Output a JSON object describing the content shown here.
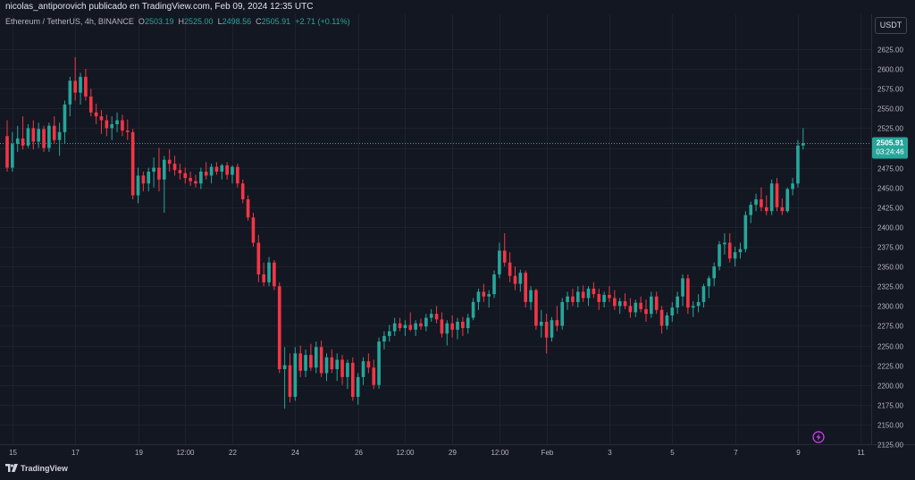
{
  "header": {
    "attribution": "nicolas_antiporovich publicado en TradingView.com, Feb 09, 2024 12:35 UTC"
  },
  "legend": {
    "symbol": "Ethereum / TetherUS, 4h, BINANCE",
    "o_label": "O",
    "o_value": "2503.19",
    "h_label": "H",
    "h_value": "2525.00",
    "l_label": "L",
    "l_value": "2498.56",
    "c_label": "C",
    "c_value": "2505.91",
    "change": "+2.71 (+0.11%)"
  },
  "currency_button": "USDT",
  "price_tag": {
    "price": "2505.91",
    "countdown": "03:24:46"
  },
  "footer": {
    "brand": "TradingView"
  },
  "colors": {
    "up": "#26a69a",
    "down": "#f23645",
    "background": "#131722",
    "grid": "#1e222d"
  },
  "lightning_icon": "lightning-icon",
  "chart_data": {
    "type": "candlestick",
    "timeframe": "4h",
    "ylim": [
      2125,
      2650
    ],
    "y_ticks": [
      2125,
      2150,
      2175,
      2200,
      2225,
      2250,
      2275,
      2300,
      2325,
      2350,
      2375,
      2400,
      2425,
      2450,
      2475,
      2500,
      2525,
      2550,
      2575,
      2600,
      2625
    ],
    "x_ticks": [
      {
        "label": "15",
        "i": 1
      },
      {
        "label": "17",
        "i": 13
      },
      {
        "label": "19",
        "i": 25
      },
      {
        "label": "12:00",
        "i": 34
      },
      {
        "label": "22",
        "i": 43
      },
      {
        "label": "24",
        "i": 55
      },
      {
        "label": "26",
        "i": 67
      },
      {
        "label": "12:00",
        "i": 76
      },
      {
        "label": "29",
        "i": 85
      },
      {
        "label": "12:00",
        "i": 94
      },
      {
        "label": "Feb",
        "i": 103
      },
      {
        "label": "3",
        "i": 115
      },
      {
        "label": "5",
        "i": 127
      },
      {
        "label": "7",
        "i": 139
      },
      {
        "label": "9",
        "i": 151
      },
      {
        "label": "11",
        "i": 163
      }
    ],
    "n_slots": 165,
    "last_price": 2505.91,
    "candles": [
      [
        2515,
        2535,
        2470,
        2475
      ],
      [
        2475,
        2520,
        2470,
        2505
      ],
      [
        2505,
        2528,
        2495,
        2512
      ],
      [
        2512,
        2540,
        2498,
        2503
      ],
      [
        2503,
        2530,
        2500,
        2525
      ],
      [
        2525,
        2535,
        2498,
        2508
      ],
      [
        2508,
        2532,
        2500,
        2524
      ],
      [
        2524,
        2528,
        2495,
        2500
      ],
      [
        2500,
        2532,
        2495,
        2528
      ],
      [
        2528,
        2540,
        2505,
        2510
      ],
      [
        2510,
        2532,
        2490,
        2520
      ],
      [
        2520,
        2560,
        2505,
        2555
      ],
      [
        2555,
        2590,
        2540,
        2585
      ],
      [
        2585,
        2615,
        2560,
        2570
      ],
      [
        2570,
        2595,
        2555,
        2590
      ],
      [
        2590,
        2600,
        2560,
        2565
      ],
      [
        2565,
        2575,
        2540,
        2545
      ],
      [
        2545,
        2556,
        2530,
        2540
      ],
      [
        2540,
        2548,
        2518,
        2535
      ],
      [
        2535,
        2542,
        2515,
        2525
      ],
      [
        2525,
        2540,
        2510,
        2530
      ],
      [
        2530,
        2545,
        2520,
        2535
      ],
      [
        2535,
        2542,
        2515,
        2522
      ],
      [
        2522,
        2536,
        2510,
        2520
      ],
      [
        2520,
        2524,
        2435,
        2440
      ],
      [
        2440,
        2475,
        2430,
        2465
      ],
      [
        2465,
        2470,
        2445,
        2455
      ],
      [
        2455,
        2475,
        2445,
        2470
      ],
      [
        2470,
        2488,
        2450,
        2475
      ],
      [
        2475,
        2500,
        2445,
        2460
      ],
      [
        2460,
        2490,
        2418,
        2485
      ],
      [
        2485,
        2498,
        2470,
        2480
      ],
      [
        2480,
        2490,
        2465,
        2472
      ],
      [
        2472,
        2480,
        2460,
        2468
      ],
      [
        2468,
        2475,
        2455,
        2462
      ],
      [
        2462,
        2470,
        2452,
        2458
      ],
      [
        2458,
        2466,
        2450,
        2455
      ],
      [
        2455,
        2475,
        2448,
        2470
      ],
      [
        2470,
        2482,
        2460,
        2465
      ],
      [
        2465,
        2480,
        2455,
        2476
      ],
      [
        2476,
        2482,
        2466,
        2470
      ],
      [
        2470,
        2480,
        2460,
        2478
      ],
      [
        2478,
        2482,
        2460,
        2466
      ],
      [
        2466,
        2478,
        2455,
        2476
      ],
      [
        2476,
        2480,
        2450,
        2455
      ],
      [
        2455,
        2460,
        2430,
        2435
      ],
      [
        2435,
        2440,
        2408,
        2412
      ],
      [
        2412,
        2418,
        2375,
        2380
      ],
      [
        2380,
        2390,
        2330,
        2340
      ],
      [
        2340,
        2355,
        2325,
        2330
      ],
      [
        2330,
        2362,
        2325,
        2355
      ],
      [
        2355,
        2358,
        2320,
        2325
      ],
      [
        2325,
        2330,
        2215,
        2220
      ],
      [
        2220,
        2248,
        2170,
        2225
      ],
      [
        2225,
        2240,
        2178,
        2185
      ],
      [
        2185,
        2248,
        2180,
        2240
      ],
      [
        2240,
        2250,
        2210,
        2218
      ],
      [
        2218,
        2245,
        2210,
        2238
      ],
      [
        2238,
        2252,
        2218,
        2222
      ],
      [
        2222,
        2255,
        2215,
        2248
      ],
      [
        2248,
        2256,
        2210,
        2215
      ],
      [
        2215,
        2240,
        2205,
        2235
      ],
      [
        2235,
        2245,
        2215,
        2220
      ],
      [
        2220,
        2240,
        2205,
        2232
      ],
      [
        2232,
        2238,
        2200,
        2210
      ],
      [
        2210,
        2232,
        2195,
        2228
      ],
      [
        2228,
        2235,
        2180,
        2185
      ],
      [
        2185,
        2215,
        2175,
        2210
      ],
      [
        2210,
        2235,
        2200,
        2230
      ],
      [
        2230,
        2240,
        2215,
        2222
      ],
      [
        2222,
        2232,
        2195,
        2200
      ],
      [
        2200,
        2260,
        2195,
        2255
      ],
      [
        2255,
        2268,
        2245,
        2262
      ],
      [
        2262,
        2276,
        2255,
        2268
      ],
      [
        2268,
        2285,
        2262,
        2278
      ],
      [
        2278,
        2285,
        2268,
        2272
      ],
      [
        2272,
        2282,
        2262,
        2276
      ],
      [
        2276,
        2292,
        2268,
        2270
      ],
      [
        2270,
        2282,
        2262,
        2278
      ],
      [
        2278,
        2284,
        2270,
        2274
      ],
      [
        2274,
        2290,
        2268,
        2285
      ],
      [
        2285,
        2296,
        2280,
        2290
      ],
      [
        2290,
        2300,
        2278,
        2283
      ],
      [
        2283,
        2292,
        2260,
        2265
      ],
      [
        2265,
        2282,
        2250,
        2278
      ],
      [
        2278,
        2288,
        2260,
        2270
      ],
      [
        2270,
        2285,
        2258,
        2280
      ],
      [
        2280,
        2286,
        2262,
        2272
      ],
      [
        2272,
        2290,
        2265,
        2285
      ],
      [
        2285,
        2310,
        2282,
        2305
      ],
      [
        2305,
        2322,
        2295,
        2318
      ],
      [
        2318,
        2328,
        2305,
        2312
      ],
      [
        2312,
        2320,
        2298,
        2315
      ],
      [
        2315,
        2345,
        2310,
        2340
      ],
      [
        2340,
        2380,
        2335,
        2370
      ],
      [
        2370,
        2392,
        2350,
        2355
      ],
      [
        2355,
        2368,
        2330,
        2338
      ],
      [
        2338,
        2350,
        2320,
        2328
      ],
      [
        2328,
        2346,
        2318,
        2342
      ],
      [
        2342,
        2345,
        2298,
        2305
      ],
      [
        2305,
        2325,
        2295,
        2320
      ],
      [
        2320,
        2322,
        2270,
        2275
      ],
      [
        2275,
        2295,
        2260,
        2280
      ],
      [
        2280,
        2290,
        2240,
        2260
      ],
      [
        2260,
        2286,
        2255,
        2282
      ],
      [
        2282,
        2300,
        2268,
        2275
      ],
      [
        2275,
        2310,
        2270,
        2305
      ],
      [
        2305,
        2318,
        2295,
        2312
      ],
      [
        2312,
        2322,
        2300,
        2305
      ],
      [
        2305,
        2325,
        2298,
        2318
      ],
      [
        2318,
        2326,
        2305,
        2310
      ],
      [
        2310,
        2325,
        2300,
        2322
      ],
      [
        2322,
        2330,
        2310,
        2315
      ],
      [
        2315,
        2322,
        2295,
        2305
      ],
      [
        2305,
        2318,
        2298,
        2314
      ],
      [
        2314,
        2325,
        2305,
        2310
      ],
      [
        2310,
        2320,
        2295,
        2300
      ],
      [
        2300,
        2310,
        2290,
        2306
      ],
      [
        2306,
        2316,
        2296,
        2300
      ],
      [
        2300,
        2310,
        2285,
        2292
      ],
      [
        2292,
        2308,
        2286,
        2304
      ],
      [
        2304,
        2312,
        2292,
        2296
      ],
      [
        2296,
        2308,
        2280,
        2290
      ],
      [
        2290,
        2318,
        2285,
        2312
      ],
      [
        2312,
        2318,
        2290,
        2295
      ],
      [
        2295,
        2300,
        2265,
        2275
      ],
      [
        2275,
        2292,
        2270,
        2288
      ],
      [
        2288,
        2305,
        2280,
        2298
      ],
      [
        2298,
        2318,
        2290,
        2312
      ],
      [
        2312,
        2340,
        2300,
        2335
      ],
      [
        2335,
        2340,
        2290,
        2298
      ],
      [
        2298,
        2306,
        2286,
        2300
      ],
      [
        2300,
        2315,
        2292,
        2305
      ],
      [
        2305,
        2328,
        2298,
        2325
      ],
      [
        2325,
        2338,
        2310,
        2335
      ],
      [
        2335,
        2355,
        2325,
        2350
      ],
      [
        2350,
        2382,
        2345,
        2378
      ],
      [
        2378,
        2392,
        2365,
        2380
      ],
      [
        2380,
        2392,
        2355,
        2360
      ],
      [
        2360,
        2375,
        2350,
        2368
      ],
      [
        2368,
        2380,
        2360,
        2372
      ],
      [
        2372,
        2420,
        2368,
        2415
      ],
      [
        2415,
        2432,
        2405,
        2428
      ],
      [
        2428,
        2442,
        2420,
        2435
      ],
      [
        2435,
        2450,
        2420,
        2425
      ],
      [
        2425,
        2440,
        2415,
        2420
      ],
      [
        2420,
        2460,
        2415,
        2455
      ],
      [
        2455,
        2462,
        2420,
        2425
      ],
      [
        2425,
        2436,
        2415,
        2420
      ],
      [
        2420,
        2450,
        2418,
        2448
      ],
      [
        2448,
        2462,
        2440,
        2455
      ],
      [
        2455,
        2510,
        2450,
        2503
      ],
      [
        2503,
        2525,
        2498,
        2506
      ]
    ]
  }
}
